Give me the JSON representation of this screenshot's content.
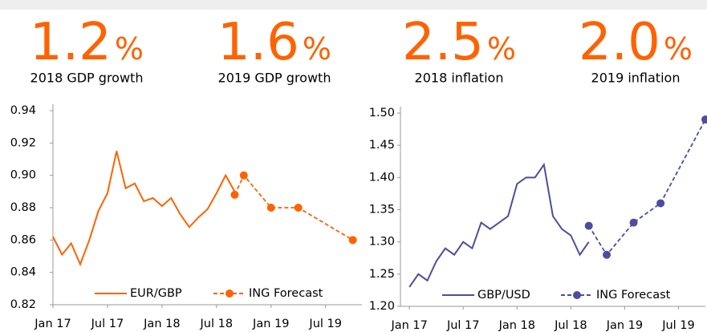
{
  "stats": [
    {
      "value": "1.2",
      "unit": "%",
      "label": "2018 GDP growth"
    },
    {
      "value": "1.6",
      "unit": "%",
      "label": "2019 GDP growth"
    },
    {
      "value": "2.5",
      "unit": "%",
      "label": "2018 inflation"
    },
    {
      "value": "2.0",
      "unit": "%",
      "label": "2019 inflation"
    }
  ],
  "chart_data": [
    {
      "type": "line",
      "xlim": [
        "2017-01",
        "2019-11"
      ],
      "xticks": [
        {
          "value": "2017-01",
          "label": "Jan 17"
        },
        {
          "value": "2017-07",
          "label": "Jul 17"
        },
        {
          "value": "2018-01",
          "label": "Jan 18"
        },
        {
          "value": "2018-07",
          "label": "Jul 18"
        },
        {
          "value": "2019-01",
          "label": "Jan 19"
        },
        {
          "value": "2019-07",
          "label": "Jul 19"
        }
      ],
      "ylim": [
        0.82,
        0.94
      ],
      "yticks": [
        0.82,
        0.84,
        0.86,
        0.88,
        {
          "value": 0.9,
          "label": "0.90"
        },
        0.92,
        0.94
      ],
      "series": [
        {
          "name": "EUR/GBP",
          "color": "#ff6200",
          "dashed": false,
          "markers": false,
          "x": [
            "2017-01",
            "2017-02",
            "2017-03",
            "2017-04",
            "2017-05",
            "2017-06",
            "2017-07",
            "2017-08",
            "2017-09",
            "2017-10",
            "2017-11",
            "2017-12",
            "2018-01",
            "2018-02",
            "2018-03",
            "2018-04",
            "2018-05",
            "2018-06",
            "2018-07",
            "2018-08",
            "2018-09"
          ],
          "values": [
            0.862,
            0.851,
            0.858,
            0.845,
            0.86,
            0.878,
            0.889,
            0.915,
            0.892,
            0.895,
            0.884,
            0.886,
            0.881,
            0.886,
            0.876,
            0.868,
            0.874,
            0.879,
            0.889,
            0.9,
            0.89
          ]
        },
        {
          "name": "ING Forecast",
          "color": "#ff6200",
          "dashed": true,
          "markers": true,
          "x": [
            "2018-09",
            "2018-10",
            "2019-01",
            "2019-04",
            "2019-10"
          ],
          "values": [
            0.888,
            0.9,
            0.88,
            0.88,
            0.86
          ]
        }
      ]
    },
    {
      "type": "line",
      "xlim": [
        "2016-12",
        "2019-10"
      ],
      "xticks": [
        {
          "value": "2017-01",
          "label": "Jan 17"
        },
        {
          "value": "2017-07",
          "label": "Jul 17"
        },
        {
          "value": "2018-01",
          "label": "Jan 18"
        },
        {
          "value": "2018-07",
          "label": "Jul 18"
        },
        {
          "value": "2019-01",
          "label": "Jan 19"
        },
        {
          "value": "2019-07",
          "label": "Jul 19"
        }
      ],
      "ylim": [
        1.2,
        1.5
      ],
      "yticks": [
        {
          "value": 1.2,
          "label": "1.20"
        },
        1.25,
        {
          "value": 1.3,
          "label": "1.30"
        },
        1.35,
        {
          "value": 1.4,
          "label": "1.40"
        },
        1.45,
        {
          "value": 1.5,
          "label": "1.50"
        }
      ],
      "series": [
        {
          "name": "GBP/USD",
          "color": "#4d4d9f",
          "dashed": false,
          "markers": false,
          "x": [
            "2017-01",
            "2017-02",
            "2017-03",
            "2017-04",
            "2017-05",
            "2017-06",
            "2017-07",
            "2017-08",
            "2017-09",
            "2017-10",
            "2017-11",
            "2017-12",
            "2018-01",
            "2018-02",
            "2018-03",
            "2018-04",
            "2018-05",
            "2018-06",
            "2018-07",
            "2018-08",
            "2018-09"
          ],
          "values": [
            1.23,
            1.25,
            1.24,
            1.27,
            1.29,
            1.28,
            1.3,
            1.29,
            1.33,
            1.32,
            1.33,
            1.34,
            1.39,
            1.4,
            1.4,
            1.42,
            1.34,
            1.32,
            1.31,
            1.28,
            1.3
          ]
        },
        {
          "name": "ING Forecast",
          "color": "#4d4d9f",
          "dashed": true,
          "markers": true,
          "x": [
            "2018-09",
            "2018-11",
            "2019-02",
            "2019-05",
            "2019-10"
          ],
          "values": [
            1.325,
            1.28,
            1.33,
            1.36,
            1.49
          ]
        }
      ]
    }
  ]
}
